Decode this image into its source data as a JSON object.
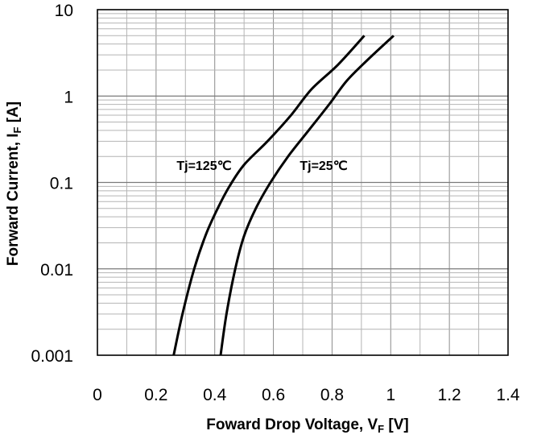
{
  "chart_data": {
    "type": "line",
    "title": "",
    "xlabel": {
      "main": "Foward Drop Voltage,  V",
      "sub": "F",
      "suffix": " [V]"
    },
    "ylabel": {
      "main": "Forward Current,  I",
      "sub": "F",
      "suffix": " [A]"
    },
    "xlim": [
      0,
      1.4
    ],
    "ylim": [
      0.001,
      10
    ],
    "yscale": "log",
    "grid": true,
    "x_ticks": [
      0,
      0.2,
      0.4,
      0.6,
      0.8,
      1,
      1.2,
      1.4
    ],
    "x_tick_labels": [
      "0",
      "0.2",
      "0.4",
      "0.6",
      "0.8",
      "1",
      "1.2",
      "1.4"
    ],
    "y_ticks": [
      0.001,
      0.01,
      0.1,
      1,
      10
    ],
    "y_tick_labels": [
      "0.001",
      "0.01",
      "0.1",
      "1",
      "10"
    ],
    "series": [
      {
        "name": "Tj=125℃",
        "x": [
          0.26,
          0.29,
          0.33,
          0.37,
          0.41,
          0.45,
          0.5,
          0.58,
          0.66,
          0.73,
          0.82,
          0.91
        ],
        "y": [
          0.001,
          0.003,
          0.01,
          0.025,
          0.05,
          0.09,
          0.16,
          0.3,
          0.6,
          1.2,
          2.3,
          5
        ]
      },
      {
        "name": "Tj=25℃",
        "x": [
          0.42,
          0.44,
          0.47,
          0.5,
          0.54,
          0.59,
          0.65,
          0.72,
          0.79,
          0.85,
          0.92,
          1.01
        ],
        "y": [
          0.001,
          0.003,
          0.01,
          0.024,
          0.05,
          0.1,
          0.2,
          0.4,
          0.8,
          1.5,
          2.6,
          5
        ]
      }
    ],
    "annotations": [
      {
        "text": "Tj=125℃",
        "x": 0.27,
        "y": 0.14
      },
      {
        "text": "Tj=25℃",
        "x": 0.69,
        "y": 0.14
      }
    ]
  }
}
